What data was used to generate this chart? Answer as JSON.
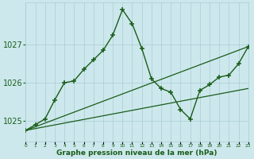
{
  "title": "Graphe pression niveau de la mer (hPa)",
  "background_color": "#cce8ec",
  "grid_color": "#aaccd4",
  "line_color": "#1a5c1a",
  "hours": [
    0,
    1,
    2,
    3,
    4,
    5,
    6,
    7,
    8,
    9,
    10,
    11,
    12,
    13,
    14,
    15,
    16,
    17,
    18,
    19,
    20,
    21,
    22,
    23
  ],
  "pressure_main": [
    1024.75,
    1024.9,
    1025.05,
    1025.55,
    1026.0,
    1026.05,
    1026.35,
    1026.6,
    1026.85,
    1027.25,
    1027.92,
    1027.55,
    1026.9,
    1026.1,
    1025.85,
    1025.75,
    1025.3,
    1025.05,
    1025.8,
    1025.95,
    1026.15,
    1026.2,
    1026.5,
    1026.95
  ],
  "trend_line1_x": [
    0,
    23
  ],
  "trend_line1_y": [
    1024.75,
    1026.95
  ],
  "trend_line2_x": [
    0,
    23
  ],
  "trend_line2_y": [
    1024.75,
    1025.85
  ],
  "ylim_min": 1024.45,
  "ylim_max": 1028.1,
  "yticks": [
    1025,
    1026,
    1027
  ],
  "xlim_min": 0,
  "xlim_max": 23
}
